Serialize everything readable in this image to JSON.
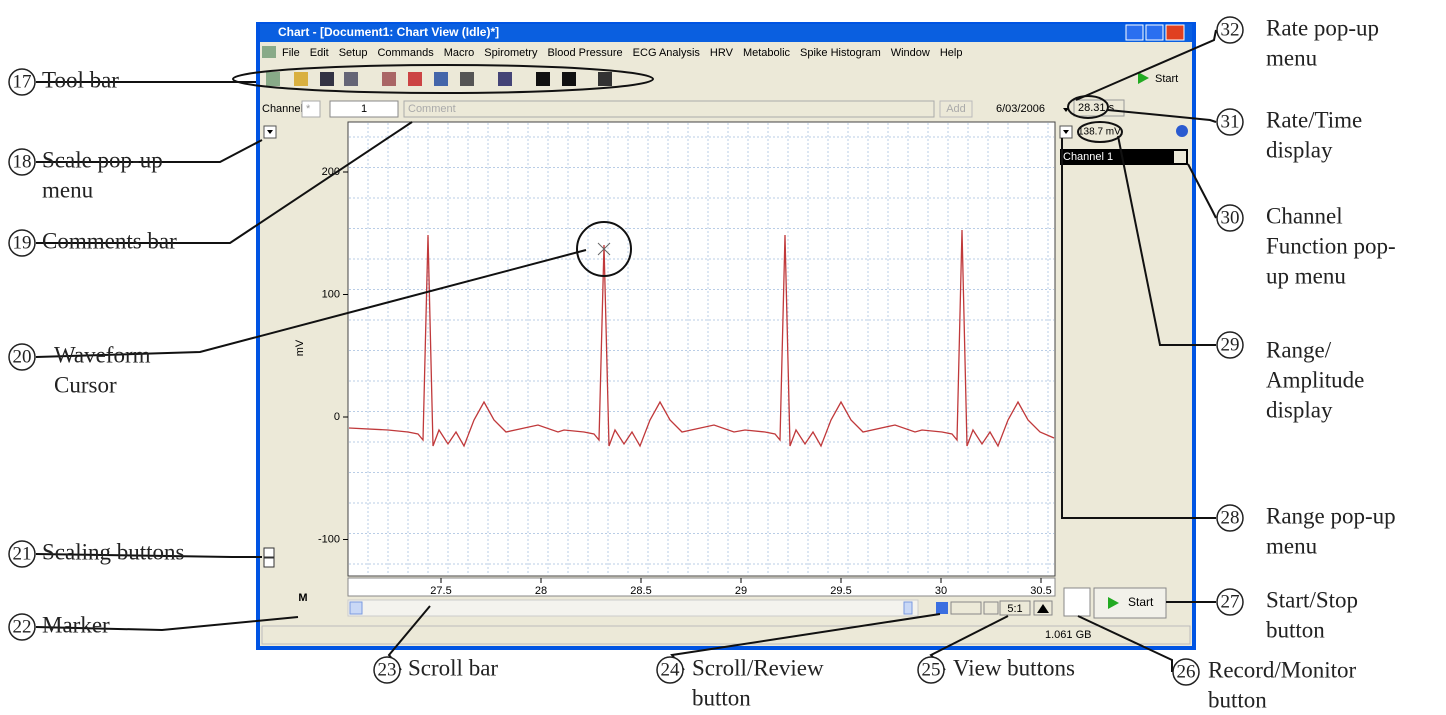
{
  "window": {
    "title": "Chart - [Document1: Chart View (Idle)*]",
    "menu": [
      "File",
      "Edit",
      "Setup",
      "Commands",
      "Macro",
      "Spirometry",
      "Blood Pressure",
      "ECG Analysis",
      "HRV",
      "Metabolic",
      "Spike Histogram",
      "Window",
      "Help"
    ],
    "toolbar_start": "Start"
  },
  "comment_bar": {
    "channel_label": "Channel:",
    "channel_value": "*",
    "number": "1",
    "comment": "Comment",
    "add": "Add",
    "date": "6/03/2006"
  },
  "right_panel": {
    "rate": "28.31 s",
    "range": "138.7 mV",
    "channel": "Channel 1"
  },
  "plot": {
    "y_unit": "mV",
    "yticks": [
      200,
      100,
      0,
      -100
    ],
    "xticks": [
      27.5,
      28,
      28.5,
      29,
      29.5,
      30,
      30.5
    ]
  },
  "bottom": {
    "marker": "M",
    "zoom": "5:1",
    "start": "Start",
    "disk": "1.061 GB"
  },
  "callouts": [
    {
      "number": "17",
      "lines": [
        "Tool bar"
      ]
    },
    {
      "number": "18",
      "lines": [
        "Scale pop-up",
        "menu"
      ]
    },
    {
      "number": "19",
      "lines": [
        "Comments bar"
      ]
    },
    {
      "number": "20",
      "lines": [
        "Waveform",
        "Cursor"
      ]
    },
    {
      "number": "21",
      "lines": [
        "Scaling buttons"
      ]
    },
    {
      "number": "22",
      "lines": [
        "Marker"
      ]
    },
    {
      "number": "23",
      "lines": [
        "Scroll bar"
      ]
    },
    {
      "number": "24",
      "lines": [
        "Scroll/Review",
        "button"
      ]
    },
    {
      "number": "25",
      "lines": [
        "View buttons"
      ]
    },
    {
      "number": "26",
      "lines": [
        "Record/Monitor",
        "button"
      ]
    },
    {
      "number": "27",
      "lines": [
        "Start/Stop",
        "button"
      ]
    },
    {
      "number": "28",
      "lines": [
        "Range pop-up",
        "menu"
      ]
    },
    {
      "number": "29",
      "lines": [
        "Range/",
        "Amplitude",
        "display"
      ]
    },
    {
      "number": "30",
      "lines": [
        "Channel",
        "Function pop-",
        "up menu"
      ]
    },
    {
      "number": "31",
      "lines": [
        "Rate/Time",
        "display"
      ]
    },
    {
      "number": "32",
      "lines": [
        "Rate pop-up",
        "menu"
      ]
    }
  ]
}
